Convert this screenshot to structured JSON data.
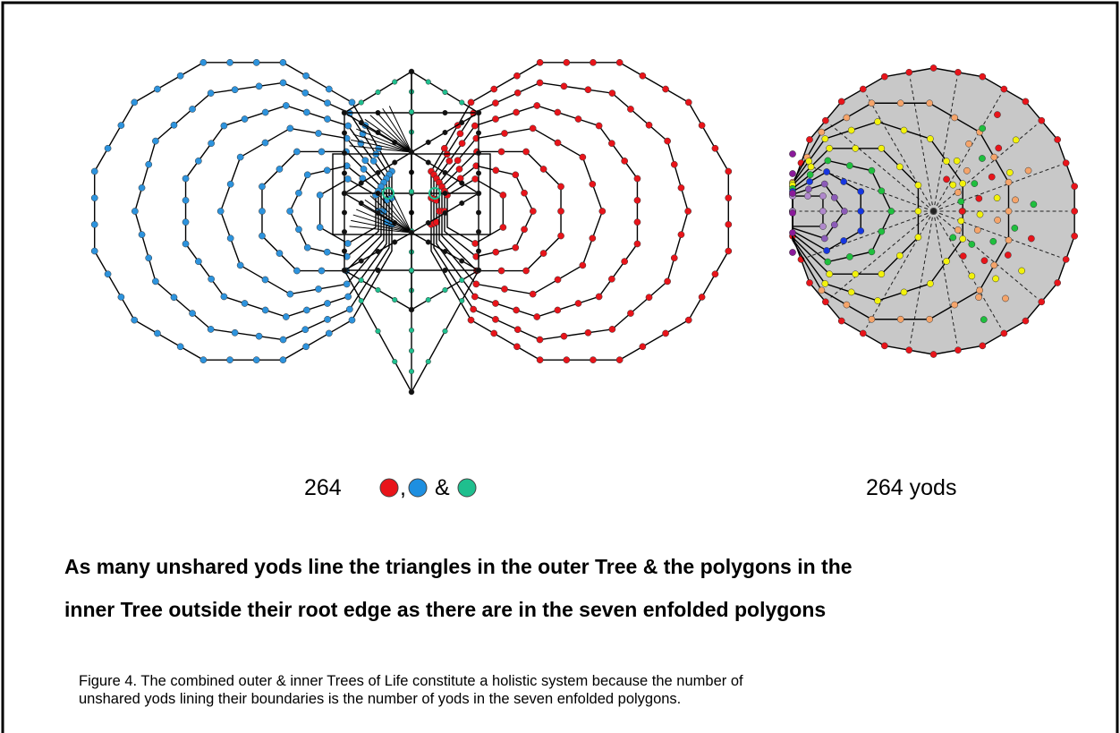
{
  "left_label": {
    "number": "264",
    "comma": ",",
    "ampersand": "&"
  },
  "right_label": "264 yods",
  "heading": [
    "As many unshared yods line the triangles in the outer Tree & the polygons in the",
    "inner Tree outside their root edge as there are in the seven enfolded polygons"
  ],
  "caption": [
    "Figure 4. The combined outer & inner Trees of Life constitute a holistic system because the number of",
    "unshared yods lining their boundaries is the number of yods in the seven enfolded polygons."
  ]
}
